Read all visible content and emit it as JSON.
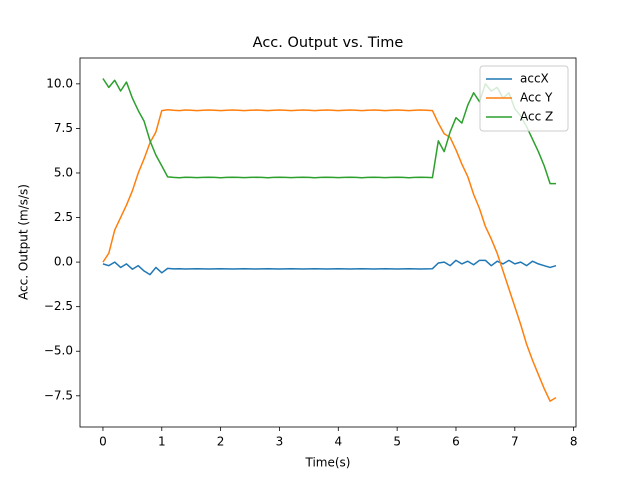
{
  "chart_data": {
    "type": "line",
    "title": "Acc. Output vs. Time",
    "x_label": "Time(s)",
    "y_label": "Acc. Output (m/s/s)",
    "x": [
      0,
      0.1,
      0.2,
      0.3,
      0.4,
      0.5,
      0.6,
      0.7,
      0.8,
      0.9,
      1.0,
      1.1,
      1.2,
      1.3,
      1.4,
      1.5,
      1.6,
      1.7,
      1.8,
      1.9,
      2.0,
      2.1,
      2.2,
      2.3,
      2.4,
      2.5,
      2.6,
      2.7,
      2.8,
      2.9,
      3.0,
      3.1,
      3.2,
      3.3,
      3.4,
      3.5,
      3.6,
      3.7,
      3.8,
      3.9,
      4.0,
      4.1,
      4.2,
      4.3,
      4.4,
      4.5,
      4.6,
      4.7,
      4.8,
      4.9,
      5.0,
      5.1,
      5.2,
      5.3,
      5.4,
      5.5,
      5.6,
      5.7,
      5.8,
      5.9,
      6.0,
      6.1,
      6.2,
      6.3,
      6.4,
      6.5,
      6.6,
      6.7,
      6.8,
      6.9,
      7.0,
      7.1,
      7.2,
      7.3,
      7.4,
      7.5,
      7.6,
      7.7
    ],
    "series": [
      {
        "name": "accX",
        "color": "#1f77b4",
        "values": [
          -0.1,
          -0.2,
          0,
          -0.3,
          -0.1,
          -0.4,
          -0.2,
          -0.5,
          -0.7,
          -0.3,
          -0.6,
          -0.35,
          -0.38,
          -0.37,
          -0.39,
          -0.38,
          -0.37,
          -0.38,
          -0.39,
          -0.38,
          -0.37,
          -0.38,
          -0.39,
          -0.38,
          -0.37,
          -0.38,
          -0.39,
          -0.38,
          -0.37,
          -0.38,
          -0.39,
          -0.38,
          -0.37,
          -0.38,
          -0.39,
          -0.38,
          -0.37,
          -0.38,
          -0.39,
          -0.38,
          -0.37,
          -0.38,
          -0.39,
          -0.38,
          -0.37,
          -0.38,
          -0.39,
          -0.38,
          -0.37,
          -0.38,
          -0.39,
          -0.38,
          -0.37,
          -0.38,
          -0.39,
          -0.38,
          -0.37,
          -0.05,
          0.0,
          -0.2,
          0.1,
          -0.1,
          0.05,
          -0.15,
          0.1,
          0.1,
          -0.2,
          0.05,
          -0.1,
          0.1,
          -0.1,
          0.0,
          -0.2,
          0.05,
          -0.1,
          -0.2,
          -0.3,
          -0.2
        ]
      },
      {
        "name": "Acc Y",
        "color": "#ff7f0e",
        "values": [
          0,
          0.5,
          1.8,
          2.5,
          3.2,
          4,
          5,
          5.8,
          6.7,
          7.3,
          8.5,
          8.55,
          8.52,
          8.5,
          8.53,
          8.52,
          8.5,
          8.52,
          8.53,
          8.52,
          8.5,
          8.52,
          8.53,
          8.52,
          8.5,
          8.52,
          8.53,
          8.52,
          8.5,
          8.52,
          8.53,
          8.52,
          8.5,
          8.52,
          8.53,
          8.52,
          8.5,
          8.52,
          8.53,
          8.52,
          8.5,
          8.52,
          8.53,
          8.52,
          8.5,
          8.52,
          8.53,
          8.52,
          8.5,
          8.52,
          8.53,
          8.52,
          8.5,
          8.52,
          8.53,
          8.52,
          8.5,
          7.8,
          7.2,
          7,
          6.3,
          5.5,
          4.8,
          3.8,
          3,
          2,
          1.3,
          0.5,
          -0.5,
          -1.5,
          -2.5,
          -3.5,
          -4.6,
          -5.5,
          -6.3,
          -7.1,
          -7.8,
          -7.6
        ]
      },
      {
        "name": "Acc Z",
        "color": "#2ca02c",
        "values": [
          10.3,
          9.8,
          10.2,
          9.6,
          10.1,
          9.2,
          8.5,
          7.9,
          6.8,
          6.0,
          5.4,
          4.78,
          4.75,
          4.73,
          4.76,
          4.75,
          4.74,
          4.75,
          4.76,
          4.75,
          4.73,
          4.75,
          4.76,
          4.75,
          4.74,
          4.75,
          4.76,
          4.75,
          4.73,
          4.75,
          4.76,
          4.75,
          4.74,
          4.75,
          4.76,
          4.75,
          4.73,
          4.75,
          4.76,
          4.75,
          4.74,
          4.75,
          4.76,
          4.75,
          4.73,
          4.75,
          4.76,
          4.75,
          4.74,
          4.75,
          4.76,
          4.75,
          4.73,
          4.75,
          4.76,
          4.75,
          4.74,
          6.8,
          6.2,
          7.3,
          8.1,
          7.8,
          8.8,
          9.5,
          9.0,
          10.0,
          9.6,
          9.8,
          9.2,
          9.5,
          8.6,
          8.2,
          7.6,
          6.9,
          6.2,
          5.4,
          4.4,
          4.4
        ]
      }
    ],
    "xlim": [
      -0.39,
      8.04
    ],
    "ylim": [
      -9.25,
      11.45
    ],
    "xticks": [
      0,
      1,
      2,
      3,
      4,
      5,
      6,
      7,
      8
    ],
    "yticks": [
      {
        "value": -7.5,
        "label": "−7.5"
      },
      {
        "value": -5,
        "label": "−5.0"
      },
      {
        "value": -2.5,
        "label": "−2.5"
      },
      {
        "value": 0,
        "label": "0.0"
      },
      {
        "value": 2.5,
        "label": "2.5"
      },
      {
        "value": 5,
        "label": "5.0"
      },
      {
        "value": 7.5,
        "label": "7.5"
      },
      {
        "value": 10,
        "label": "10.0"
      }
    ],
    "legend": "upper right",
    "grid": false
  }
}
